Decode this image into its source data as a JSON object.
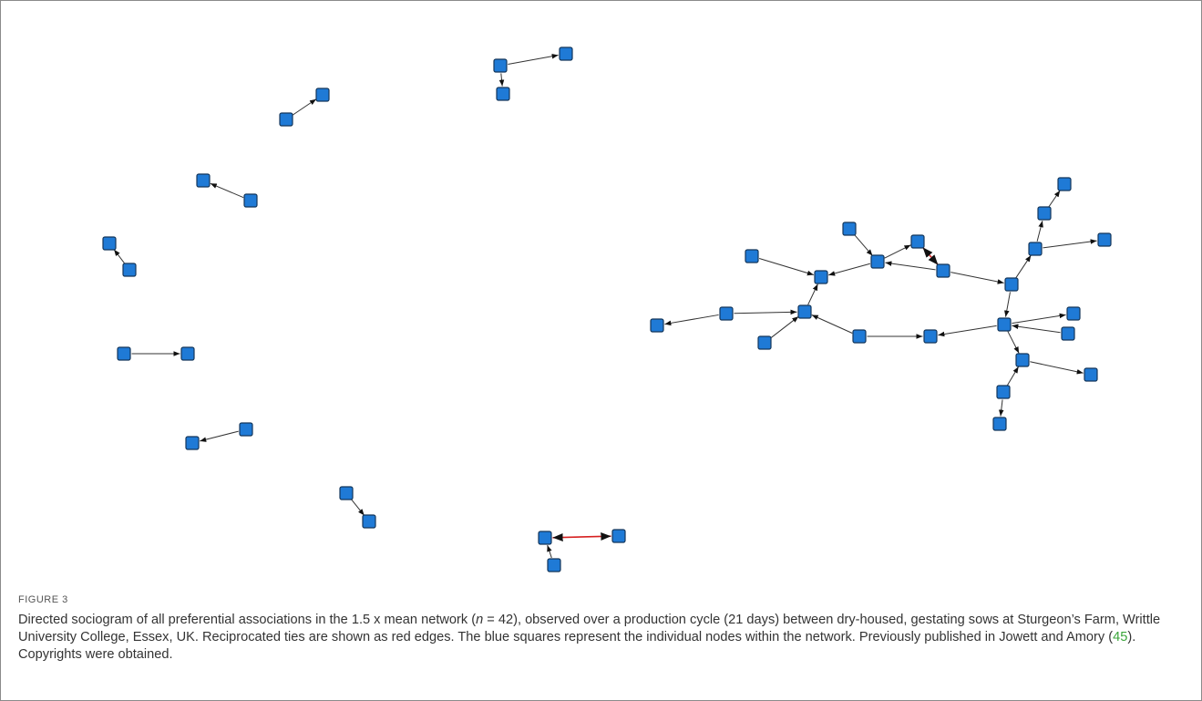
{
  "figure": {
    "label": "FIGURE 3",
    "caption": {
      "part1": "Directed sociogram of all preferential associations in the 1.5 x mean network (",
      "n_symbol": "n",
      "part2": " = 42), observed over a production cycle (21 days) between dry-housed, gestating sows at Sturgeon’s Farm, Writtle University College, Essex, UK. Reciprocated ties are shown as red edges. The blue squares represent the individual nodes within the network. Previously published in Jowett and Amory (",
      "ref": "45",
      "part3": "). Copyrights were obtained."
    }
  },
  "colors": {
    "node_fill": "#1f7ad6",
    "edge": "#333333",
    "reciprocated_edge": "#d62020",
    "reference_link": "#3aa53a"
  }
}
